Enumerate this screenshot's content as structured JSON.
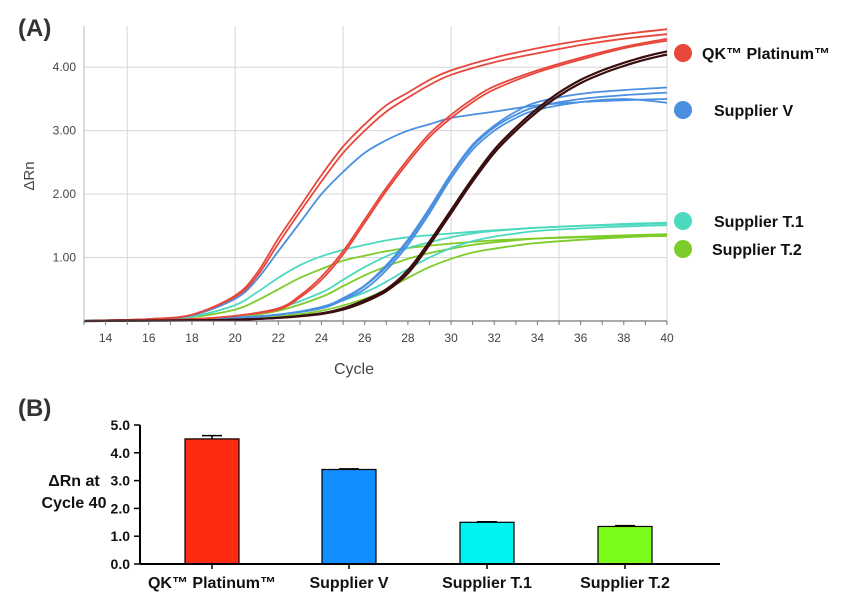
{
  "panel_labels": {
    "a": "(A)",
    "b": "(B)"
  },
  "colors": {
    "qk": "#e8473c",
    "supplier_v": "#4a8fe0",
    "supplier_t1": "#4dd9bf",
    "supplier_t2": "#7dcc2a",
    "dark": "#3a0e0e",
    "bar_qk": "#ff2a12",
    "bar_v": "#118eff",
    "bar_t1": "#00f2f2",
    "bar_t2": "#7cfc1a"
  },
  "chart_data": [
    {
      "type": "line",
      "panel": "(A)",
      "xlabel": "Cycle",
      "ylabel": "ΔRn",
      "xlim": [
        13,
        40
      ],
      "ylim": [
        0,
        4.65
      ],
      "x_ticks": [
        "14",
        "16",
        "18",
        "20",
        "22",
        "24",
        "26",
        "28",
        "30",
        "32",
        "34",
        "36",
        "38",
        "40"
      ],
      "y_ticks": [
        "1.00",
        "2.00",
        "3.00",
        "4.00"
      ],
      "grid": true,
      "legend_position": "right",
      "legend": [
        {
          "label": "QK™ Platinum™",
          "color": "#e8473c"
        },
        {
          "label": "Supplier V",
          "color": "#4a8fe0"
        },
        {
          "label": "Supplier T.1",
          "color": "#4dd9bf"
        },
        {
          "label": "Supplier T.2",
          "color": "#7dcc2a"
        }
      ],
      "curve_groups": [
        {
          "series": "QK™ Platinum™",
          "color": "#e8473c",
          "group": "early",
          "x": [
            13,
            14,
            16,
            18,
            20,
            21,
            22,
            23,
            24,
            25,
            26,
            27,
            28,
            29,
            30,
            32,
            34,
            36,
            38,
            40
          ],
          "y": [
            0,
            0.01,
            0.03,
            0.1,
            0.4,
            0.75,
            1.3,
            1.8,
            2.3,
            2.75,
            3.1,
            3.4,
            3.6,
            3.8,
            3.95,
            4.15,
            4.3,
            4.42,
            4.52,
            4.6
          ]
        },
        {
          "series": "QK™ Platinum™",
          "color": "#e8473c",
          "group": "early",
          "x": [
            13,
            14,
            16,
            18,
            20,
            21,
            22,
            23,
            24,
            25,
            26,
            27,
            28,
            29,
            30,
            32,
            34,
            36,
            38,
            40
          ],
          "y": [
            0,
            0.01,
            0.03,
            0.1,
            0.38,
            0.7,
            1.22,
            1.72,
            2.2,
            2.65,
            3.0,
            3.3,
            3.52,
            3.72,
            3.88,
            4.08,
            4.22,
            4.35,
            4.45,
            4.52
          ]
        },
        {
          "series": "QK™ Platinum™",
          "color": "#e8473c",
          "group": "late",
          "x": [
            13,
            16,
            18,
            20,
            22,
            23,
            24,
            25,
            26,
            27,
            28,
            29,
            30,
            31,
            32,
            34,
            36,
            38,
            40
          ],
          "y": [
            0,
            0.01,
            0.03,
            0.08,
            0.2,
            0.4,
            0.7,
            1.1,
            1.6,
            2.1,
            2.55,
            2.95,
            3.25,
            3.5,
            3.7,
            3.95,
            4.15,
            4.32,
            4.45
          ]
        },
        {
          "series": "QK™ Platinum™",
          "color": "#e8473c",
          "group": "late",
          "x": [
            13,
            16,
            18,
            20,
            22,
            23,
            24,
            25,
            26,
            27,
            28,
            29,
            30,
            31,
            32,
            34,
            36,
            38,
            40
          ],
          "y": [
            0,
            0.01,
            0.03,
            0.08,
            0.18,
            0.37,
            0.65,
            1.05,
            1.55,
            2.05,
            2.5,
            2.9,
            3.2,
            3.45,
            3.65,
            3.92,
            4.12,
            4.3,
            4.42
          ]
        },
        {
          "series": "Supplier V",
          "color": "#4a8fe0",
          "group": "early",
          "x": [
            13,
            14,
            16,
            18,
            20,
            21,
            22,
            23,
            24,
            25,
            26,
            27,
            28,
            29,
            30,
            32,
            34,
            36,
            38,
            40
          ],
          "y": [
            0,
            0.01,
            0.03,
            0.09,
            0.35,
            0.65,
            1.1,
            1.55,
            2.0,
            2.35,
            2.65,
            2.85,
            3.0,
            3.1,
            3.2,
            3.3,
            3.4,
            3.45,
            3.48,
            3.5
          ]
        },
        {
          "series": "Supplier V",
          "color": "#4a8fe0",
          "group": "late",
          "x": [
            13,
            16,
            18,
            20,
            22,
            24,
            25,
            26,
            27,
            28,
            29,
            30,
            31,
            32,
            33,
            34,
            36,
            38,
            40
          ],
          "y": [
            0,
            0.01,
            0.03,
            0.05,
            0.1,
            0.2,
            0.35,
            0.55,
            0.85,
            1.25,
            1.75,
            2.3,
            2.75,
            3.05,
            3.25,
            3.38,
            3.5,
            3.56,
            3.6
          ]
        },
        {
          "series": "Supplier V",
          "color": "#4a8fe0",
          "group": "late",
          "x": [
            13,
            16,
            18,
            20,
            22,
            24,
            25,
            26,
            27,
            28,
            29,
            30,
            31,
            32,
            33,
            34,
            36,
            38,
            40
          ],
          "y": [
            0,
            0.01,
            0.03,
            0.05,
            0.1,
            0.2,
            0.33,
            0.5,
            0.8,
            1.2,
            1.7,
            2.25,
            2.7,
            3.0,
            3.2,
            3.33,
            3.45,
            3.5,
            3.44
          ]
        },
        {
          "series": "Supplier V",
          "color": "#4a8fe0",
          "group": "late",
          "x": [
            13,
            16,
            18,
            20,
            22,
            24,
            25,
            26,
            27,
            28,
            29,
            30,
            31,
            32,
            33,
            34,
            36,
            38,
            40
          ],
          "y": [
            0,
            0.01,
            0.03,
            0.05,
            0.1,
            0.22,
            0.36,
            0.56,
            0.88,
            1.28,
            1.78,
            2.32,
            2.78,
            3.08,
            3.3,
            3.45,
            3.58,
            3.64,
            3.68
          ]
        },
        {
          "series": "Supplier T.1",
          "color": "#4dd9bf",
          "group": "early",
          "x": [
            13,
            16,
            18,
            20,
            21,
            22,
            23,
            24,
            25,
            26,
            27,
            28,
            30,
            32,
            34,
            36,
            38,
            40
          ],
          "y": [
            0,
            0.02,
            0.07,
            0.25,
            0.45,
            0.68,
            0.88,
            1.02,
            1.12,
            1.2,
            1.27,
            1.32,
            1.38,
            1.43,
            1.47,
            1.5,
            1.52,
            1.54
          ]
        },
        {
          "series": "Supplier T.1",
          "color": "#4dd9bf",
          "group": "late",
          "x": [
            13,
            16,
            18,
            20,
            22,
            24,
            25,
            26,
            27,
            28,
            29,
            30,
            31,
            32,
            34,
            36,
            38,
            40
          ],
          "y": [
            0,
            0.01,
            0.03,
            0.07,
            0.2,
            0.45,
            0.65,
            0.85,
            1.02,
            1.15,
            1.24,
            1.32,
            1.38,
            1.42,
            1.47,
            1.5,
            1.53,
            1.55
          ]
        },
        {
          "series": "Supplier T.1",
          "color": "#4dd9bf",
          "group": "late",
          "x": [
            13,
            16,
            18,
            20,
            22,
            24,
            26,
            27,
            28,
            29,
            30,
            31,
            32,
            33,
            34,
            36,
            38,
            40
          ],
          "y": [
            0,
            0.01,
            0.02,
            0.04,
            0.1,
            0.22,
            0.45,
            0.62,
            0.82,
            1.0,
            1.15,
            1.26,
            1.33,
            1.38,
            1.42,
            1.46,
            1.49,
            1.51
          ]
        },
        {
          "series": "Supplier T.2",
          "color": "#7dcc2a",
          "group": "early",
          "x": [
            13,
            16,
            18,
            20,
            21,
            22,
            23,
            24,
            25,
            26,
            27,
            28,
            30,
            32,
            34,
            36,
            38,
            40
          ],
          "y": [
            0,
            0.02,
            0.06,
            0.18,
            0.32,
            0.5,
            0.68,
            0.82,
            0.95,
            1.03,
            1.1,
            1.15,
            1.22,
            1.27,
            1.3,
            1.32,
            1.33,
            1.34
          ]
        },
        {
          "series": "Supplier T.2",
          "color": "#7dcc2a",
          "group": "late",
          "x": [
            13,
            16,
            18,
            20,
            22,
            24,
            25,
            26,
            27,
            28,
            29,
            30,
            31,
            32,
            34,
            36,
            38,
            40
          ],
          "y": [
            0,
            0.01,
            0.03,
            0.06,
            0.16,
            0.38,
            0.55,
            0.72,
            0.86,
            0.98,
            1.07,
            1.14,
            1.2,
            1.24,
            1.3,
            1.33,
            1.35,
            1.37
          ]
        },
        {
          "series": "Supplier T.2",
          "color": "#7dcc2a",
          "group": "late",
          "x": [
            13,
            16,
            18,
            20,
            22,
            24,
            26,
            27,
            28,
            29,
            30,
            31,
            32,
            33,
            34,
            36,
            38,
            40
          ],
          "y": [
            0,
            0.01,
            0.02,
            0.03,
            0.07,
            0.16,
            0.35,
            0.5,
            0.68,
            0.85,
            0.98,
            1.08,
            1.14,
            1.19,
            1.23,
            1.28,
            1.32,
            1.35
          ]
        },
        {
          "series": "",
          "color": "#3a0e0e",
          "group": "dark",
          "x": [
            13,
            18,
            20,
            22,
            24,
            25,
            26,
            27,
            28,
            29,
            30,
            31,
            32,
            33,
            34,
            35,
            36,
            37,
            38,
            39,
            40
          ],
          "y": [
            0,
            0.01,
            0.02,
            0.05,
            0.12,
            0.2,
            0.33,
            0.5,
            0.8,
            1.25,
            1.75,
            2.25,
            2.7,
            3.05,
            3.35,
            3.6,
            3.8,
            3.95,
            4.07,
            4.17,
            4.25
          ]
        },
        {
          "series": "",
          "color": "#3a0e0e",
          "group": "dark",
          "x": [
            13,
            18,
            20,
            22,
            24,
            25,
            26,
            27,
            28,
            29,
            30,
            31,
            32,
            33,
            34,
            35,
            36,
            37,
            38,
            39,
            40
          ],
          "y": [
            0,
            0.01,
            0.02,
            0.05,
            0.11,
            0.18,
            0.3,
            0.47,
            0.75,
            1.2,
            1.7,
            2.2,
            2.65,
            3.0,
            3.3,
            3.55,
            3.75,
            3.9,
            4.02,
            4.12,
            4.2
          ]
        }
      ]
    },
    {
      "type": "bar",
      "panel": "(B)",
      "ylabel_lines": [
        "ΔRn at",
        "Cycle 40"
      ],
      "ylim": [
        0,
        5.0
      ],
      "y_ticks": [
        "0.0",
        "1.0",
        "2.0",
        "3.0",
        "4.0",
        "5.0"
      ],
      "categories": [
        "QK™ Platinum™",
        "Supplier V",
        "Supplier T.1",
        "Supplier T.2"
      ],
      "values": [
        4.5,
        3.4,
        1.5,
        1.35
      ],
      "errors": [
        0.12,
        0.02,
        0.02,
        0.03
      ],
      "colors": [
        "#ff2a12",
        "#118eff",
        "#00f2f2",
        "#7cfc1a"
      ]
    }
  ]
}
